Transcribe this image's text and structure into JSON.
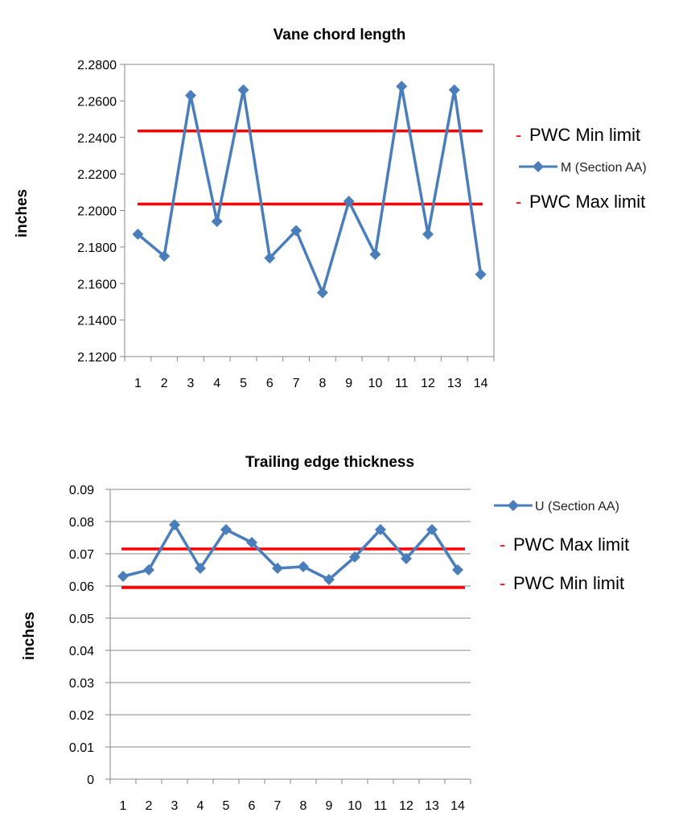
{
  "chart_data": [
    {
      "type": "line",
      "title": "Vane chord length",
      "ylabel": "inches",
      "xlabel": "",
      "categories": [
        "1",
        "2",
        "3",
        "4",
        "5",
        "6",
        "7",
        "8",
        "9",
        "10",
        "11",
        "12",
        "13",
        "14"
      ],
      "ylim": [
        2.12,
        2.28
      ],
      "ytick_step": 0.02,
      "ytick_labels": [
        "2.1200",
        "2.1400",
        "2.1600",
        "2.1800",
        "2.2000",
        "2.2200",
        "2.2400",
        "2.2600",
        "2.2800"
      ],
      "grid": false,
      "legend_position": "right",
      "series": [
        {
          "name": "M (Section AA)",
          "color": "#4a7ebb",
          "marker": "diamond",
          "values": [
            2.187,
            2.175,
            2.263,
            2.194,
            2.266,
            2.174,
            2.189,
            2.155,
            2.205,
            2.176,
            2.268,
            2.187,
            2.266,
            2.165
          ]
        }
      ],
      "limits": [
        {
          "label": "PWC Min limit",
          "value": 2.2435,
          "color": "#ff0000"
        },
        {
          "label": "PWC Max limit",
          "value": 2.2035,
          "color": "#ff0000"
        }
      ]
    },
    {
      "type": "line",
      "title": "Trailing edge thickness",
      "ylabel": "inches",
      "xlabel": "",
      "categories": [
        "1",
        "2",
        "3",
        "4",
        "5",
        "6",
        "7",
        "8",
        "9",
        "10",
        "11",
        "12",
        "13",
        "14"
      ],
      "ylim": [
        0,
        0.09
      ],
      "ytick_step": 0.01,
      "ytick_labels": [
        "0",
        "0.01",
        "0.02",
        "0.03",
        "0.04",
        "0.05",
        "0.06",
        "0.07",
        "0.08",
        "0.09"
      ],
      "grid": true,
      "legend_position": "right",
      "series": [
        {
          "name": "U (Section AA)",
          "color": "#4a7ebb",
          "marker": "diamond",
          "values": [
            0.063,
            0.065,
            0.079,
            0.0655,
            0.0775,
            0.0735,
            0.0655,
            0.066,
            0.062,
            0.069,
            0.0775,
            0.0685,
            0.0775,
            0.065
          ]
        }
      ],
      "limits": [
        {
          "label": "PWC Max limit",
          "value": 0.0715,
          "color": "#ff0000"
        },
        {
          "label": "PWC Min limit",
          "value": 0.0595,
          "color": "#ff0000"
        }
      ]
    }
  ],
  "limit_dash": "-"
}
